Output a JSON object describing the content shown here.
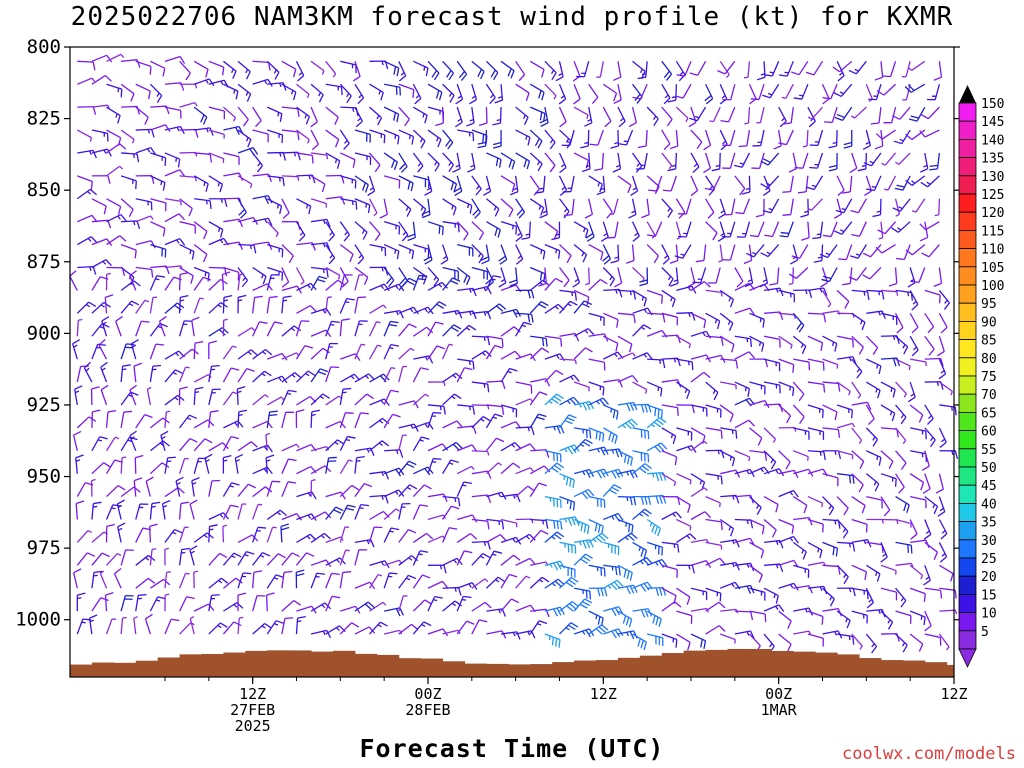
{
  "title": "2025022706 NAM3KM forecast wind profile (kt) for KXMR",
  "xlabel": "Forecast Time (UTC)",
  "credit": "coolwx.com/models",
  "chart_data": {
    "type": "wind-barb time-height",
    "ylabel_units": "hPa",
    "y_reversed": true,
    "ylim": [
      800,
      1020
    ],
    "y_ticks": [
      "800",
      "825",
      "850",
      "875",
      "900",
      "925",
      "950",
      "975",
      "1000"
    ],
    "x_range_hours": [
      -6.5,
      54
    ],
    "x_ticks": [
      {
        "hour": 6,
        "lines": [
          "12Z",
          "27FEB",
          "2025"
        ]
      },
      {
        "hour": 18,
        "lines": [
          "00Z",
          "28FEB"
        ]
      },
      {
        "hour": 30,
        "lines": [
          "12Z"
        ]
      },
      {
        "hour": 42,
        "lines": [
          "00Z",
          "1MAR"
        ]
      },
      {
        "hour": 54,
        "lines": [
          "12Z"
        ]
      }
    ],
    "colorbar": {
      "labels": [
        "5",
        "10",
        "15",
        "20",
        "25",
        "30",
        "35",
        "40",
        "45",
        "50",
        "55",
        "60",
        "65",
        "70",
        "75",
        "80",
        "85",
        "90",
        "95",
        "100",
        "105",
        "110",
        "115",
        "120",
        "125",
        "130",
        "135",
        "140",
        "145",
        "150"
      ],
      "colors": [
        "#8a2be2",
        "#7a18f0",
        "#3c12e6",
        "#1e1ed2",
        "#1446f0",
        "#1e78ff",
        "#1ea0f0",
        "#1ec8e6",
        "#1ee6b4",
        "#1ee682",
        "#1ee650",
        "#32e61e",
        "#50e61e",
        "#8ce61e",
        "#c8f01e",
        "#f0f01e",
        "#ffe61e",
        "#ffd21e",
        "#ffbe1e",
        "#ffa01e",
        "#ff8c1e",
        "#ff781e",
        "#ff5a1e",
        "#ff3c1e",
        "#ff1e1e",
        "#f01e50",
        "#f01e78",
        "#f01ea0",
        "#f01ec8",
        "#f01ef0"
      ]
    },
    "terrain_color": "#a0522d",
    "surface_pressure_hpa": 1013,
    "wind_profile_note": "barbs every hour (columns) at multiple pressure levels; speeds mostly 5-35 kt"
  }
}
